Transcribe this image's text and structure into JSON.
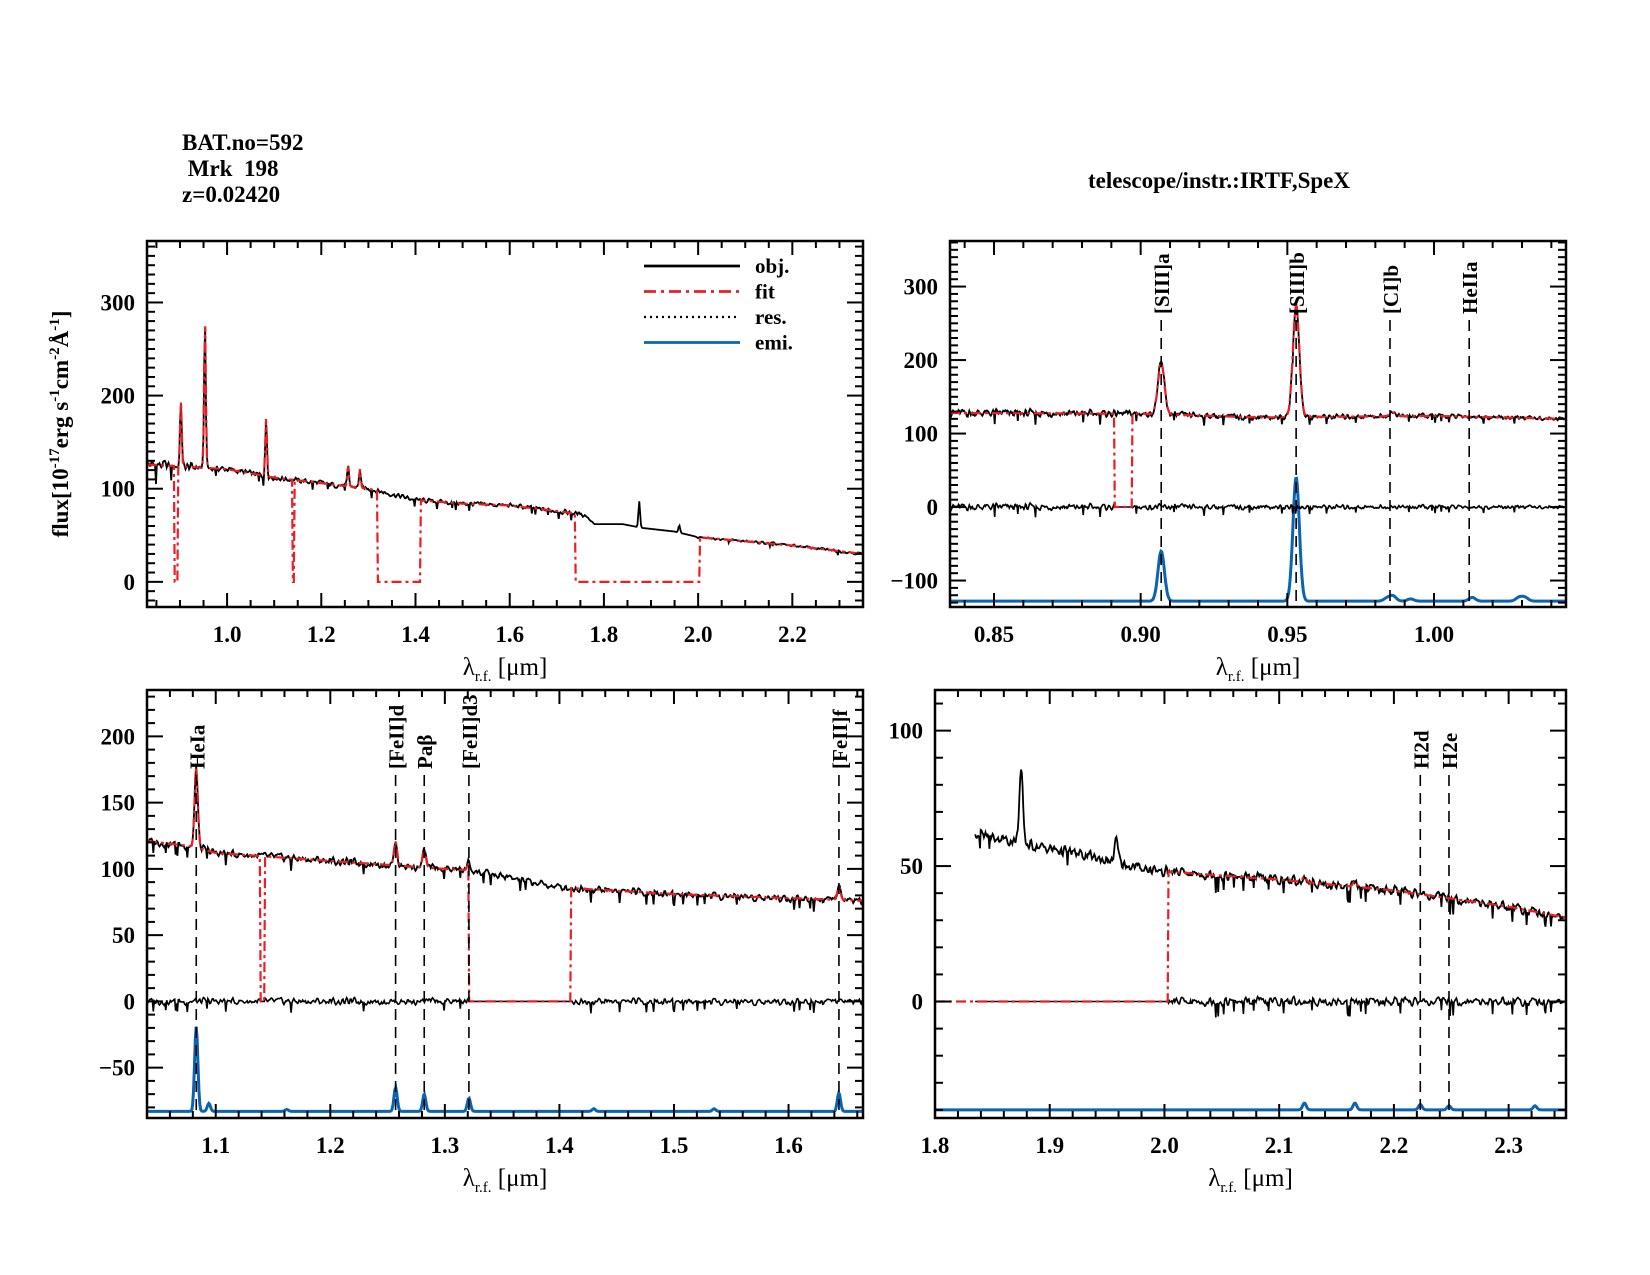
{
  "header": {
    "bat_no": "BAT.no=592",
    "object": " Mrk  198",
    "redshift": "z=0.02420",
    "telescope": "telescope/instr.:IRTF,SpeX"
  },
  "colors": {
    "obj": "#000000",
    "fit": "#ee1c24",
    "res": "#000000",
    "emi": "#0a64b4"
  },
  "legend": {
    "obj": "obj.",
    "fit": "fit",
    "res": "res.",
    "emi": "emi."
  },
  "ylabel_parts": {
    "a": "flux[10",
    "b": "-17",
    "c": "erg s",
    "d": "-1",
    "e": "cm",
    "f": "-2",
    "g": "Å",
    "h": "-1",
    "i": "]"
  },
  "xlabel_parts": {
    "a": "λ",
    "b": "r.f.",
    "c": " [μm]"
  },
  "chart_data": [
    {
      "type": "line",
      "panel": "full-spectrum",
      "xlim": [
        0.83,
        2.35
      ],
      "ylim": [
        -27,
        366
      ],
      "xticks": [
        1.0,
        1.2,
        1.4,
        1.6,
        1.8,
        2.0,
        2.2
      ],
      "xtick_decimals": 1,
      "yticks": [
        0,
        100,
        200,
        300
      ],
      "xlabel": "λr.f. [μm]",
      "ylabel": "flux[10^-17 erg s^-1 cm^-2 Å^-1]",
      "legend_position": "top-right",
      "obj_continuum": [
        [
          0.83,
          126
        ],
        [
          0.9,
          124
        ],
        [
          1.0,
          121
        ],
        [
          1.1,
          112
        ],
        [
          1.2,
          106
        ],
        [
          1.3,
          100
        ],
        [
          1.4,
          88
        ],
        [
          1.5,
          84
        ],
        [
          1.6,
          82
        ],
        [
          1.7,
          76
        ],
        [
          1.76,
          72
        ],
        [
          1.78,
          62
        ],
        [
          1.84,
          62
        ],
        [
          1.88,
          58
        ],
        [
          1.95,
          54
        ],
        [
          2.0,
          48
        ],
        [
          2.2,
          39
        ],
        [
          2.35,
          30
        ]
      ],
      "obj_lines": [
        [
          0.902,
          70
        ],
        [
          0.953,
          158
        ],
        [
          1.083,
          62
        ],
        [
          1.257,
          22
        ],
        [
          1.282,
          20
        ],
        [
          1.875,
          28
        ],
        [
          1.96,
          8
        ]
      ],
      "noise": [
        [
          0.83,
          8
        ],
        [
          1.0,
          4
        ],
        [
          1.42,
          3
        ],
        [
          1.76,
          3
        ],
        [
          1.78,
          0
        ],
        [
          1.99,
          0
        ],
        [
          2.0,
          1.5
        ],
        [
          2.35,
          2
        ]
      ],
      "fit_zero": [
        [
          0.888,
          0.896
        ],
        [
          1.139,
          1.143
        ],
        [
          1.32,
          1.41
        ],
        [
          1.74,
          2.003
        ]
      ],
      "show_res": false,
      "show_emi": false,
      "line_sigma": 0.0018,
      "markers": []
    },
    {
      "type": "line",
      "panel": "zoom-0.84-1.04",
      "xlim": [
        0.835,
        1.045
      ],
      "ylim": [
        -136,
        362
      ],
      "xticks": [
        0.85,
        0.9,
        0.95,
        1.0
      ],
      "xtick_decimals": 2,
      "yticks": [
        -100,
        0,
        100,
        200,
        300
      ],
      "xlabel": "λr.f. [μm]",
      "obj_continuum": [
        [
          0.835,
          128
        ],
        [
          0.9,
          127
        ],
        [
          0.94,
          122
        ],
        [
          1.0,
          124
        ],
        [
          1.045,
          120
        ]
      ],
      "obj_lines": [
        [
          0.907,
          70
        ],
        [
          0.953,
          152
        ],
        [
          0.986,
          5
        ]
      ],
      "noise": [
        [
          0.835,
          7
        ],
        [
          0.9,
          5
        ],
        [
          1.045,
          3
        ]
      ],
      "fit_zero": [
        [
          0.891,
          0.897
        ]
      ],
      "show_res": true,
      "show_emi": true,
      "emi_baseline": -128,
      "emi_peaks": [
        [
          0.907,
          68
        ],
        [
          0.953,
          168
        ],
        [
          0.984,
          4
        ],
        [
          0.986,
          7
        ],
        [
          0.992,
          3
        ],
        [
          1.013,
          5
        ],
        [
          1.029,
          5
        ],
        [
          1.031,
          5
        ]
      ],
      "line_sigma": 0.0011,
      "markers": [
        {
          "label": "[SIII]a",
          "x": 0.907
        },
        {
          "label": "[SIII]b",
          "x": 0.953
        },
        {
          "label": "[CI]b",
          "x": 0.985
        },
        {
          "label": "HeIIa",
          "x": 1.012
        }
      ]
    },
    {
      "type": "line",
      "panel": "zoom-1.04-1.66",
      "xlim": [
        1.04,
        1.665
      ],
      "ylim": [
        -88,
        235
      ],
      "xticks": [
        1.1,
        1.2,
        1.3,
        1.4,
        1.5,
        1.6
      ],
      "xtick_decimals": 1,
      "yticks": [
        -50,
        0,
        50,
        100,
        150,
        200
      ],
      "xlabel": "λr.f. [μm]",
      "obj_continuum": [
        [
          1.04,
          121
        ],
        [
          1.08,
          117
        ],
        [
          1.1,
          112
        ],
        [
          1.2,
          106
        ],
        [
          1.3,
          100
        ],
        [
          1.32,
          99
        ],
        [
          1.4,
          86
        ],
        [
          1.5,
          81
        ],
        [
          1.665,
          76
        ]
      ],
      "obj_lines": [
        [
          1.083,
          60
        ],
        [
          1.257,
          18
        ],
        [
          1.282,
          14
        ],
        [
          1.321,
          6
        ],
        [
          1.644,
          10
        ]
      ],
      "noise": [
        [
          1.04,
          3.5
        ],
        [
          1.665,
          3.5
        ]
      ],
      "fit_zero": [
        [
          1.139,
          1.143
        ],
        [
          1.321,
          1.41
        ]
      ],
      "show_res": true,
      "show_emi": true,
      "emi_baseline": -83,
      "emi_peaks": [
        [
          1.083,
          64
        ],
        [
          1.094,
          6
        ],
        [
          1.162,
          1.5
        ],
        [
          1.257,
          18
        ],
        [
          1.282,
          13
        ],
        [
          1.321,
          10
        ],
        [
          1.43,
          2
        ],
        [
          1.535,
          2
        ],
        [
          1.644,
          14
        ]
      ],
      "line_sigma": 0.0014,
      "markers": [
        {
          "label": "HeIa",
          "x": 1.083
        },
        {
          "label": "[FeII]d",
          "x": 1.257
        },
        {
          "label": "Paβ",
          "x": 1.282
        },
        {
          "label": "[FeII]d3",
          "x": 1.321
        },
        {
          "label": "[FeII]f",
          "x": 1.644
        }
      ]
    },
    {
      "type": "line",
      "panel": "zoom-1.8-2.35",
      "xlim": [
        1.8,
        2.35
      ],
      "ylim": [
        -43,
        115
      ],
      "xticks": [
        1.8,
        1.9,
        2.0,
        2.1,
        2.2,
        2.3
      ],
      "xtick_decimals": 1,
      "yticks": [
        0,
        50,
        100
      ],
      "xlabel": "λr.f. [μm]",
      "obj_start": 1.835,
      "obj_continuum": [
        [
          1.835,
          62
        ],
        [
          1.86,
          60
        ],
        [
          1.88,
          58
        ],
        [
          1.93,
          54
        ],
        [
          1.97,
          50
        ],
        [
          2.0,
          48
        ],
        [
          2.1,
          45
        ],
        [
          2.2,
          41
        ],
        [
          2.3,
          35
        ],
        [
          2.35,
          31
        ]
      ],
      "obj_lines": [
        [
          1.875,
          26
        ],
        [
          1.958,
          8
        ],
        [
          2.122,
          2
        ],
        [
          2.166,
          2
        ]
      ],
      "noise": [
        [
          1.835,
          2.5
        ],
        [
          2.35,
          2
        ]
      ],
      "fit_zero": [
        [
          1.8,
          2.003
        ]
      ],
      "show_res": true,
      "show_emi": true,
      "emi_baseline": -40,
      "emi_peaks": [
        [
          2.122,
          2.5
        ],
        [
          2.166,
          2.5
        ],
        [
          2.223,
          2
        ],
        [
          2.248,
          1.5
        ],
        [
          2.323,
          1.5
        ]
      ],
      "line_sigma": 0.0016,
      "markers": [
        {
          "label": "H2d",
          "x": 2.223
        },
        {
          "label": "H2e",
          "x": 2.248
        }
      ]
    }
  ]
}
